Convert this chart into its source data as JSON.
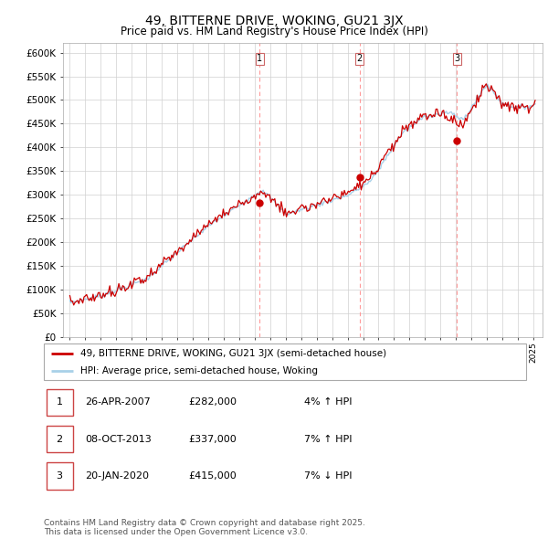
{
  "title": "49, BITTERNE DRIVE, WOKING, GU21 3JX",
  "subtitle": "Price paid vs. HM Land Registry's House Price Index (HPI)",
  "ylim": [
    0,
    620000
  ],
  "yticks": [
    0,
    50000,
    100000,
    150000,
    200000,
    250000,
    300000,
    350000,
    400000,
    450000,
    500000,
    550000,
    600000
  ],
  "ytick_labels": [
    "£0",
    "£50K",
    "£100K",
    "£150K",
    "£200K",
    "£250K",
    "£300K",
    "£350K",
    "£400K",
    "£450K",
    "£500K",
    "£550K",
    "£600K"
  ],
  "hpi_color": "#a8d0e8",
  "price_color": "#cc0000",
  "background_color": "#ffffff",
  "grid_color": "#d0d0d0",
  "purchase_times": [
    2007.319,
    2013.769,
    2020.055
  ],
  "purchase_prices": [
    282000,
    337000,
    415000
  ],
  "purchase_labels": [
    "1",
    "2",
    "3"
  ],
  "vline_color": "#ff9999",
  "legend_entries": [
    "49, BITTERNE DRIVE, WOKING, GU21 3JX (semi-detached house)",
    "HPI: Average price, semi-detached house, Woking"
  ],
  "table_rows": [
    [
      "1",
      "26-APR-2007",
      "£282,000",
      "4% ↑ HPI"
    ],
    [
      "2",
      "08-OCT-2013",
      "£337,000",
      "7% ↑ HPI"
    ],
    [
      "3",
      "20-JAN-2020",
      "£415,000",
      "7% ↓ HPI"
    ]
  ],
  "footer": "Contains HM Land Registry data © Crown copyright and database right 2025.\nThis data is licensed under the Open Government Licence v3.0.",
  "title_fontsize": 10,
  "subtitle_fontsize": 8.5,
  "axis_fontsize": 7.5,
  "legend_fontsize": 7.5,
  "table_fontsize": 8,
  "footer_fontsize": 6.5,
  "xlim_left": 1994.6,
  "xlim_right": 2025.6
}
